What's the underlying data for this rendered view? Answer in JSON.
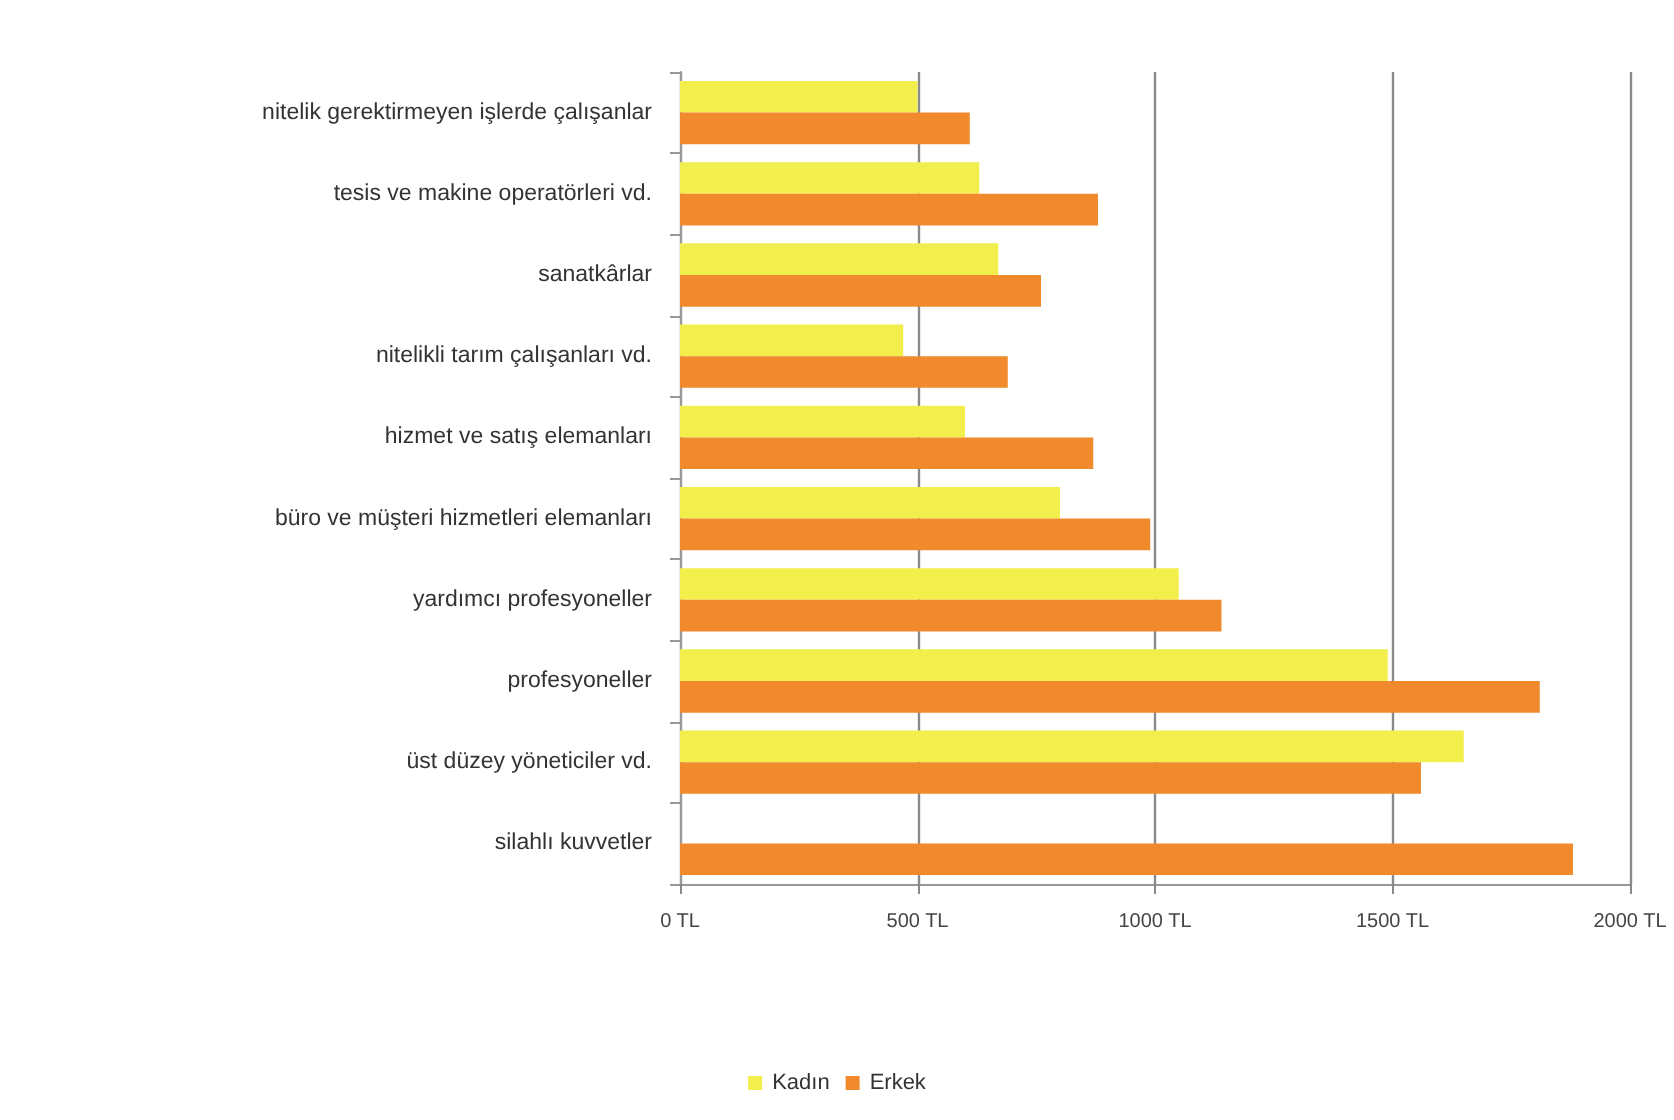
{
  "chart_data": {
    "type": "bar",
    "orientation": "horizontal",
    "categories": [
      "nitelik gerektirmeyen işlerde çalışanlar",
      "tesis ve makine operatörleri vd.",
      "sanatkârlar",
      "nitelikli tarım çalışanları vd.",
      "hizmet ve satış elemanları",
      "büro ve müşteri hizmetleri elemanları",
      "yardımcı profesyoneller",
      "profesyoneller",
      "üst düzey yöneticiler vd.",
      "silahlı kuvvetler"
    ],
    "series": [
      {
        "name": "Kadın",
        "color": "#f2ee4c",
        "values": [
          500,
          630,
          670,
          470,
          600,
          800,
          1050,
          1490,
          1650,
          null
        ]
      },
      {
        "name": "Erkek",
        "color": "#f08a2c",
        "values": [
          610,
          880,
          760,
          690,
          870,
          990,
          1140,
          1810,
          1560,
          1880
        ]
      }
    ],
    "xlim": [
      0,
      2000
    ],
    "xticks": [
      {
        "value": 0,
        "label": "0 TL"
      },
      {
        "value": 500,
        "label": "500 TL"
      },
      {
        "value": 1000,
        "label": "1000 TL"
      },
      {
        "value": 1500,
        "label": "1500 TL"
      },
      {
        "value": 2000,
        "label": "2000 TL"
      }
    ],
    "grid": "x",
    "legend": "bottom"
  }
}
